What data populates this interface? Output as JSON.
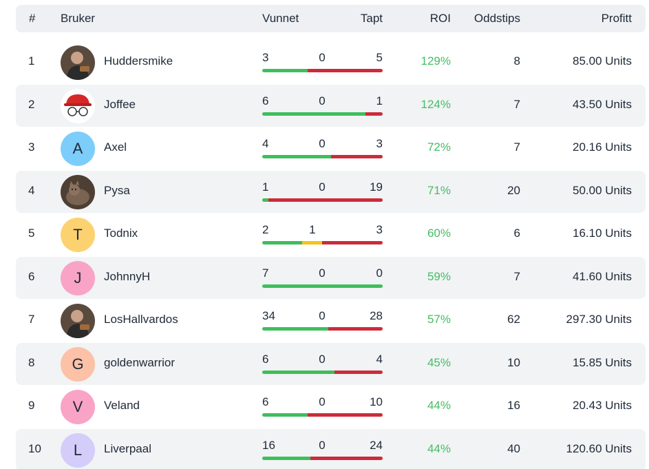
{
  "headers": {
    "rank": "#",
    "user": "Bruker",
    "won": "Vunnet",
    "lost": "Tapt",
    "roi": "ROI",
    "tips": "Oddstips",
    "profit": "Profitt"
  },
  "colors": {
    "won": "#3fbe5c",
    "draw": "#f5c518",
    "lost": "#cc2b3b",
    "roi": "#45bd62"
  },
  "rows": [
    {
      "rank": "1",
      "user": "Huddersmike",
      "avatar": {
        "type": "photo",
        "icon": "person-photo-icon"
      },
      "won": "3",
      "draw": "0",
      "lost": "5",
      "roi": "129%",
      "tips": "8",
      "profit": "85.00 Units"
    },
    {
      "rank": "2",
      "user": "Joffee",
      "avatar": {
        "type": "photo",
        "icon": "cap-glasses-icon"
      },
      "won": "6",
      "draw": "0",
      "lost": "1",
      "roi": "124%",
      "tips": "7",
      "profit": "43.50 Units"
    },
    {
      "rank": "3",
      "user": "Axel",
      "avatar": {
        "type": "letter",
        "letter": "A",
        "color": "#7dcdfa"
      },
      "won": "4",
      "draw": "0",
      "lost": "3",
      "roi": "72%",
      "tips": "7",
      "profit": "20.16 Units"
    },
    {
      "rank": "4",
      "user": "Pysa",
      "avatar": {
        "type": "photo",
        "icon": "cat-photo-icon"
      },
      "won": "1",
      "draw": "0",
      "lost": "19",
      "roi": "71%",
      "tips": "20",
      "profit": "50.00 Units"
    },
    {
      "rank": "5",
      "user": "Todnix",
      "avatar": {
        "type": "letter",
        "letter": "T",
        "color": "#fcd271"
      },
      "won": "2",
      "draw": "1",
      "lost": "3",
      "roi": "60%",
      "tips": "6",
      "profit": "16.10 Units"
    },
    {
      "rank": "6",
      "user": "JohnnyH",
      "avatar": {
        "type": "letter",
        "letter": "J",
        "color": "#f9a4c6"
      },
      "won": "7",
      "draw": "0",
      "lost": "0",
      "roi": "59%",
      "tips": "7",
      "profit": "41.60 Units"
    },
    {
      "rank": "7",
      "user": "LosHallvardos",
      "avatar": {
        "type": "photo",
        "icon": "person-photo-icon"
      },
      "won": "34",
      "draw": "0",
      "lost": "28",
      "roi": "57%",
      "tips": "62",
      "profit": "297.30 Units"
    },
    {
      "rank": "8",
      "user": "goldenwarrior",
      "avatar": {
        "type": "letter",
        "letter": "G",
        "color": "#fcc1a6"
      },
      "won": "6",
      "draw": "0",
      "lost": "4",
      "roi": "45%",
      "tips": "10",
      "profit": "15.85 Units"
    },
    {
      "rank": "9",
      "user": "Veland",
      "avatar": {
        "type": "letter",
        "letter": "V",
        "color": "#f9a4c6"
      },
      "won": "6",
      "draw": "0",
      "lost": "10",
      "roi": "44%",
      "tips": "16",
      "profit": "20.43 Units"
    },
    {
      "rank": "10",
      "user": "Liverpaal",
      "avatar": {
        "type": "letter",
        "letter": "L",
        "color": "#d4cdfa"
      },
      "won": "16",
      "draw": "0",
      "lost": "24",
      "roi": "44%",
      "tips": "40",
      "profit": "120.60 Units"
    }
  ]
}
